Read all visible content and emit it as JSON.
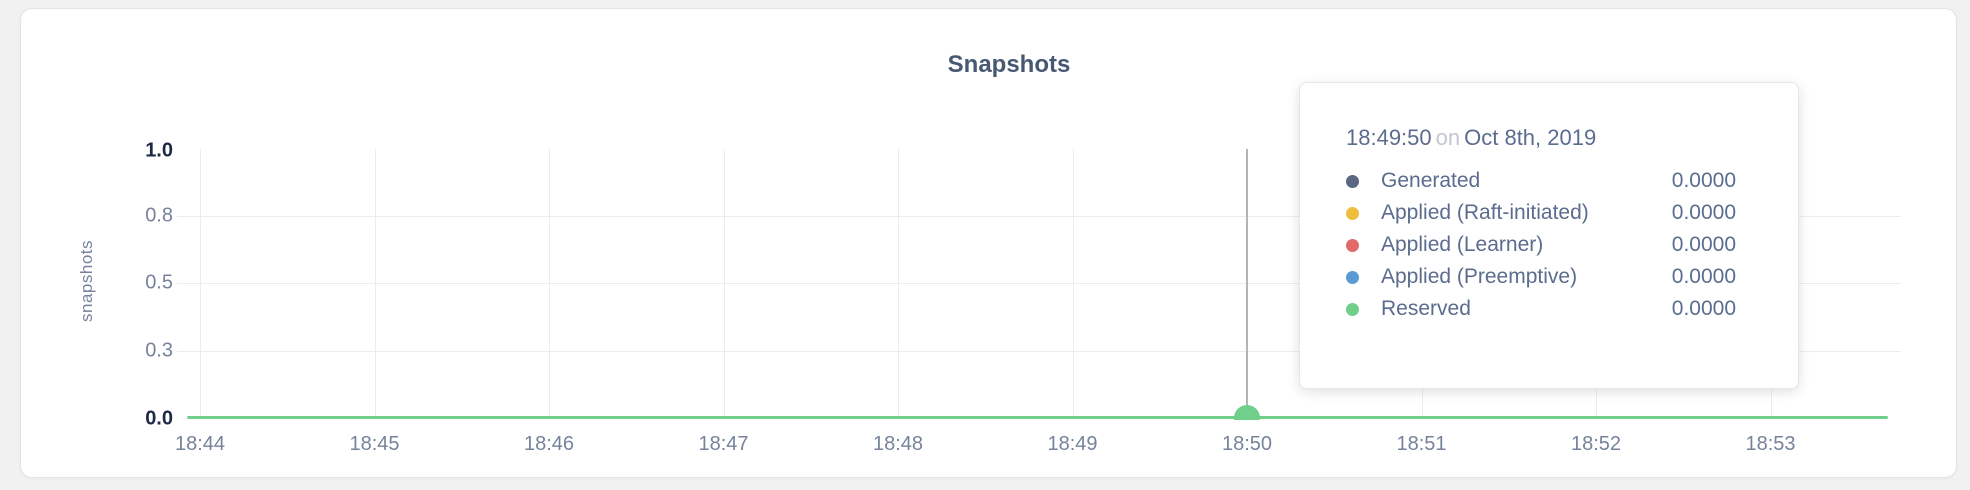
{
  "card": {
    "title": "Snapshots"
  },
  "chart": {
    "y_axis_label": "snapshots",
    "y_ticks": [
      "1.0",
      "0.8",
      "0.5",
      "0.3",
      "0.0"
    ],
    "x_ticks": [
      "18:44",
      "18:45",
      "18:46",
      "18:47",
      "18:48",
      "18:49",
      "18:50",
      "18:51",
      "18:52",
      "18:53"
    ],
    "line_color": "#70cf8a",
    "grid_color": "#ececec",
    "hover_line_color": "#b5b5b5"
  },
  "chart_data": {
    "type": "line",
    "title": "Snapshots",
    "xlabel": "",
    "ylabel": "snapshots",
    "x": [
      "18:44",
      "18:45",
      "18:46",
      "18:47",
      "18:48",
      "18:49",
      "18:50",
      "18:51",
      "18:52",
      "18:53"
    ],
    "ylim": [
      0.0,
      1.0
    ],
    "y_tick_labels": [
      "0.0",
      "0.3",
      "0.5",
      "0.8",
      "1.0"
    ],
    "grid": true,
    "legend_position": "tooltip-only",
    "series": [
      {
        "name": "Generated",
        "color": "#5a6785",
        "values": [
          0,
          0,
          0,
          0,
          0,
          0,
          0,
          0,
          0,
          0
        ]
      },
      {
        "name": "Applied (Raft-initiated)",
        "color": "#eebe3d",
        "values": [
          0,
          0,
          0,
          0,
          0,
          0,
          0,
          0,
          0,
          0
        ]
      },
      {
        "name": "Applied (Learner)",
        "color": "#e26969",
        "values": [
          0,
          0,
          0,
          0,
          0,
          0,
          0,
          0,
          0,
          0
        ]
      },
      {
        "name": "Applied (Preemptive)",
        "color": "#5b9bd5",
        "values": [
          0,
          0,
          0,
          0,
          0,
          0,
          0,
          0,
          0,
          0
        ]
      },
      {
        "name": "Reserved",
        "color": "#70cf8a",
        "values": [
          0,
          0,
          0,
          0,
          0,
          0,
          0,
          0,
          0,
          0
        ]
      }
    ],
    "hovered_point": {
      "time": "18:49:50",
      "nearest_x_tick": "18:50",
      "all_values": 0.0
    }
  },
  "tooltip": {
    "time": "18:49:50",
    "conjunction": "on",
    "date": "Oct 8th, 2019",
    "rows": [
      {
        "label": "Generated",
        "value": "0.0000",
        "color": "#5a6785"
      },
      {
        "label": "Applied (Raft-initiated)",
        "value": "0.0000",
        "color": "#eebe3d"
      },
      {
        "label": "Applied (Learner)",
        "value": "0.0000",
        "color": "#e26969"
      },
      {
        "label": "Applied (Preemptive)",
        "value": "0.0000",
        "color": "#5b9bd5"
      },
      {
        "label": "Reserved",
        "value": "0.0000",
        "color": "#70cf8a"
      }
    ]
  }
}
